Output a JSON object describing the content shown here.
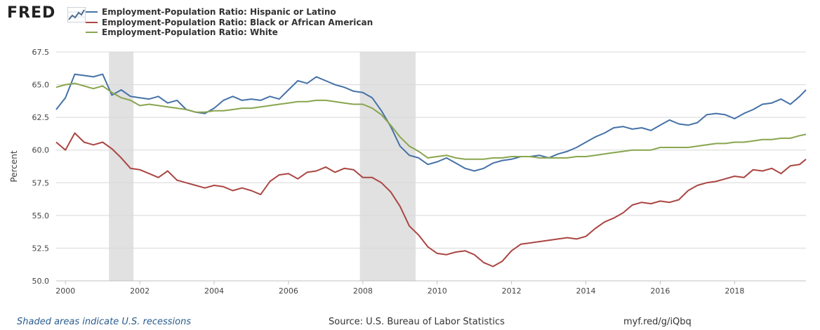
{
  "logo": {
    "text": "FRED"
  },
  "footer": {
    "recession_note": "Shaded areas indicate U.S. recessions",
    "source": "Source: U.S. Bureau of Labor Statistics",
    "link": "myf.red/g/iQbq"
  },
  "chart_data": {
    "type": "line",
    "title": "",
    "xlabel": "",
    "ylabel": "Percent",
    "ylim": [
      50.0,
      67.5
    ],
    "xlim": [
      1999.75,
      2019.92
    ],
    "yticks": [
      "50.0",
      "52.5",
      "55.0",
      "57.5",
      "60.0",
      "62.5",
      "65.0",
      "67.5"
    ],
    "xticks": [
      "2000",
      "2002",
      "2004",
      "2006",
      "2008",
      "2010",
      "2012",
      "2014",
      "2016",
      "2018"
    ],
    "grid": "horizontal",
    "legend_placement": "top-left",
    "recessions": [
      [
        2001.17,
        2001.83
      ],
      [
        2007.92,
        2009.42
      ]
    ],
    "series": [
      {
        "name": "Employment-Population Ratio: Hispanic or Latino",
        "color": "#4572a7",
        "x": [
          1999.75,
          2000.0,
          2000.25,
          2000.5,
          2000.75,
          2001.0,
          2001.25,
          2001.5,
          2001.75,
          2002.0,
          2002.25,
          2002.5,
          2002.75,
          2003.0,
          2003.25,
          2003.5,
          2003.75,
          2004.0,
          2004.25,
          2004.5,
          2004.75,
          2005.0,
          2005.25,
          2005.5,
          2005.75,
          2006.0,
          2006.25,
          2006.5,
          2006.75,
          2007.0,
          2007.25,
          2007.5,
          2007.75,
          2008.0,
          2008.25,
          2008.5,
          2008.75,
          2009.0,
          2009.25,
          2009.5,
          2009.75,
          2010.0,
          2010.25,
          2010.5,
          2010.75,
          2011.0,
          2011.25,
          2011.5,
          2011.75,
          2012.0,
          2012.25,
          2012.5,
          2012.75,
          2013.0,
          2013.25,
          2013.5,
          2013.75,
          2014.0,
          2014.25,
          2014.5,
          2014.75,
          2015.0,
          2015.25,
          2015.5,
          2015.75,
          2016.0,
          2016.25,
          2016.5,
          2016.75,
          2017.0,
          2017.25,
          2017.5,
          2017.75,
          2018.0,
          2018.25,
          2018.5,
          2018.75,
          2019.0,
          2019.25,
          2019.5,
          2019.75,
          2019.92
        ],
        "values": [
          63.1,
          64.0,
          65.8,
          65.7,
          65.6,
          65.8,
          64.2,
          64.6,
          64.1,
          64.0,
          63.9,
          64.1,
          63.6,
          63.8,
          63.1,
          62.9,
          62.8,
          63.2,
          63.8,
          64.1,
          63.8,
          63.9,
          63.8,
          64.1,
          63.9,
          64.6,
          65.3,
          65.1,
          65.6,
          65.3,
          65.0,
          64.8,
          64.5,
          64.4,
          64.0,
          63.0,
          61.8,
          60.3,
          59.6,
          59.4,
          58.9,
          59.1,
          59.4,
          59.0,
          58.6,
          58.4,
          58.6,
          59.0,
          59.2,
          59.3,
          59.5,
          59.5,
          59.6,
          59.4,
          59.7,
          59.9,
          60.2,
          60.6,
          61.0,
          61.3,
          61.7,
          61.8,
          61.6,
          61.7,
          61.5,
          61.9,
          62.3,
          62.0,
          61.9,
          62.1,
          62.7,
          62.8,
          62.7,
          62.4,
          62.8,
          63.1,
          63.5,
          63.6,
          63.9,
          63.5,
          64.1,
          64.6
        ]
      },
      {
        "name": "Employment-Population Ratio: Black or African American",
        "color": "#aa4643",
        "x": [
          1999.75,
          2000.0,
          2000.25,
          2000.5,
          2000.75,
          2001.0,
          2001.25,
          2001.5,
          2001.75,
          2002.0,
          2002.25,
          2002.5,
          2002.75,
          2003.0,
          2003.25,
          2003.5,
          2003.75,
          2004.0,
          2004.25,
          2004.5,
          2004.75,
          2005.0,
          2005.25,
          2005.5,
          2005.75,
          2006.0,
          2006.25,
          2006.5,
          2006.75,
          2007.0,
          2007.25,
          2007.5,
          2007.75,
          2008.0,
          2008.25,
          2008.5,
          2008.75,
          2009.0,
          2009.25,
          2009.5,
          2009.75,
          2010.0,
          2010.25,
          2010.5,
          2010.75,
          2011.0,
          2011.25,
          2011.5,
          2011.75,
          2012.0,
          2012.25,
          2012.5,
          2012.75,
          2013.0,
          2013.25,
          2013.5,
          2013.75,
          2014.0,
          2014.25,
          2014.5,
          2014.75,
          2015.0,
          2015.25,
          2015.5,
          2015.75,
          2016.0,
          2016.25,
          2016.5,
          2016.75,
          2017.0,
          2017.25,
          2017.5,
          2017.75,
          2018.0,
          2018.25,
          2018.5,
          2018.75,
          2019.0,
          2019.25,
          2019.5,
          2019.75,
          2019.92
        ],
        "values": [
          60.6,
          60.0,
          61.3,
          60.6,
          60.4,
          60.6,
          60.1,
          59.4,
          58.6,
          58.5,
          58.2,
          57.9,
          58.4,
          57.7,
          57.5,
          57.3,
          57.1,
          57.3,
          57.2,
          56.9,
          57.1,
          56.9,
          56.6,
          57.6,
          58.1,
          58.2,
          57.8,
          58.3,
          58.4,
          58.7,
          58.3,
          58.6,
          58.5,
          57.9,
          57.9,
          57.5,
          56.8,
          55.7,
          54.2,
          53.5,
          52.6,
          52.1,
          52.0,
          52.2,
          52.3,
          52.0,
          51.4,
          51.1,
          51.5,
          52.3,
          52.8,
          52.9,
          53.0,
          53.1,
          53.2,
          53.3,
          53.2,
          53.4,
          54.0,
          54.5,
          54.8,
          55.2,
          55.8,
          56.0,
          55.9,
          56.1,
          56.0,
          56.2,
          56.9,
          57.3,
          57.5,
          57.6,
          57.8,
          58.0,
          57.9,
          58.5,
          58.4,
          58.6,
          58.2,
          58.8,
          58.9,
          59.3
        ]
      },
      {
        "name": "Employment-Population Ratio: White",
        "color": "#89a54e",
        "x": [
          1999.75,
          2000.0,
          2000.25,
          2000.5,
          2000.75,
          2001.0,
          2001.25,
          2001.5,
          2001.75,
          2002.0,
          2002.25,
          2002.5,
          2002.75,
          2003.0,
          2003.25,
          2003.5,
          2003.75,
          2004.0,
          2004.25,
          2004.5,
          2004.75,
          2005.0,
          2005.25,
          2005.5,
          2005.75,
          2006.0,
          2006.25,
          2006.5,
          2006.75,
          2007.0,
          2007.25,
          2007.5,
          2007.75,
          2008.0,
          2008.25,
          2008.5,
          2008.75,
          2009.0,
          2009.25,
          2009.5,
          2009.75,
          2010.0,
          2010.25,
          2010.5,
          2010.75,
          2011.0,
          2011.25,
          2011.5,
          2011.75,
          2012.0,
          2012.25,
          2012.5,
          2012.75,
          2013.0,
          2013.25,
          2013.5,
          2013.75,
          2014.0,
          2014.25,
          2014.5,
          2014.75,
          2015.0,
          2015.25,
          2015.5,
          2015.75,
          2016.0,
          2016.25,
          2016.5,
          2016.75,
          2017.0,
          2017.25,
          2017.5,
          2017.75,
          2018.0,
          2018.25,
          2018.5,
          2018.75,
          2019.0,
          2019.25,
          2019.5,
          2019.75,
          2019.92
        ],
        "values": [
          64.8,
          65.0,
          65.1,
          64.9,
          64.7,
          64.9,
          64.4,
          64.0,
          63.8,
          63.4,
          63.5,
          63.4,
          63.3,
          63.2,
          63.1,
          62.9,
          62.9,
          63.0,
          63.0,
          63.1,
          63.2,
          63.2,
          63.3,
          63.4,
          63.5,
          63.6,
          63.7,
          63.7,
          63.8,
          63.8,
          63.7,
          63.6,
          63.5,
          63.5,
          63.2,
          62.7,
          61.9,
          61.0,
          60.3,
          59.9,
          59.4,
          59.5,
          59.6,
          59.4,
          59.3,
          59.3,
          59.3,
          59.4,
          59.4,
          59.5,
          59.5,
          59.5,
          59.4,
          59.4,
          59.4,
          59.4,
          59.5,
          59.5,
          59.6,
          59.7,
          59.8,
          59.9,
          60.0,
          60.0,
          60.0,
          60.2,
          60.2,
          60.2,
          60.2,
          60.3,
          60.4,
          60.5,
          60.5,
          60.6,
          60.6,
          60.7,
          60.8,
          60.8,
          60.9,
          60.9,
          61.1,
          61.2
        ]
      }
    ]
  }
}
